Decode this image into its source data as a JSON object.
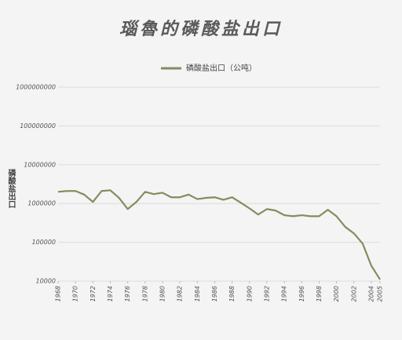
{
  "chart_data": {
    "type": "line",
    "title": "瑙魯的磷酸盐出口",
    "y_label": "磷酸盐出口",
    "x": [
      1968,
      1969,
      1970,
      1971,
      1972,
      1973,
      1974,
      1975,
      1976,
      1977,
      1978,
      1979,
      1980,
      1981,
      1982,
      1983,
      1984,
      1985,
      1986,
      1987,
      1988,
      1989,
      1990,
      1991,
      1992,
      1993,
      1994,
      1995,
      1996,
      1997,
      1998,
      1999,
      2000,
      2001,
      2002,
      2003,
      2004,
      2005
    ],
    "series": [
      {
        "name": "磷酸盐出口（公吨）",
        "color": "#868b5e",
        "values": [
          2000000,
          2100000,
          2100000,
          1700000,
          1100000,
          2100000,
          2200000,
          1400000,
          720000,
          1100000,
          2000000,
          1750000,
          1900000,
          1450000,
          1450000,
          1700000,
          1300000,
          1400000,
          1450000,
          1250000,
          1450000,
          1050000,
          750000,
          520000,
          720000,
          660000,
          500000,
          470000,
          500000,
          470000,
          470000,
          690000,
          470000,
          250000,
          170000,
          93000,
          25000,
          11000
        ]
      }
    ],
    "xlim": [
      1968,
      2005
    ],
    "xticks": [
      1968,
      1970,
      1972,
      1974,
      1976,
      1978,
      1980,
      1982,
      1984,
      1986,
      1988,
      1990,
      1992,
      1994,
      1996,
      1998,
      2000,
      2002,
      2004,
      2005
    ],
    "ylim": [
      10000,
      1000000000
    ],
    "yscale": "log",
    "yticks": [
      10000,
      100000,
      1000000,
      10000000,
      100000000,
      1000000000
    ],
    "grid": true
  }
}
